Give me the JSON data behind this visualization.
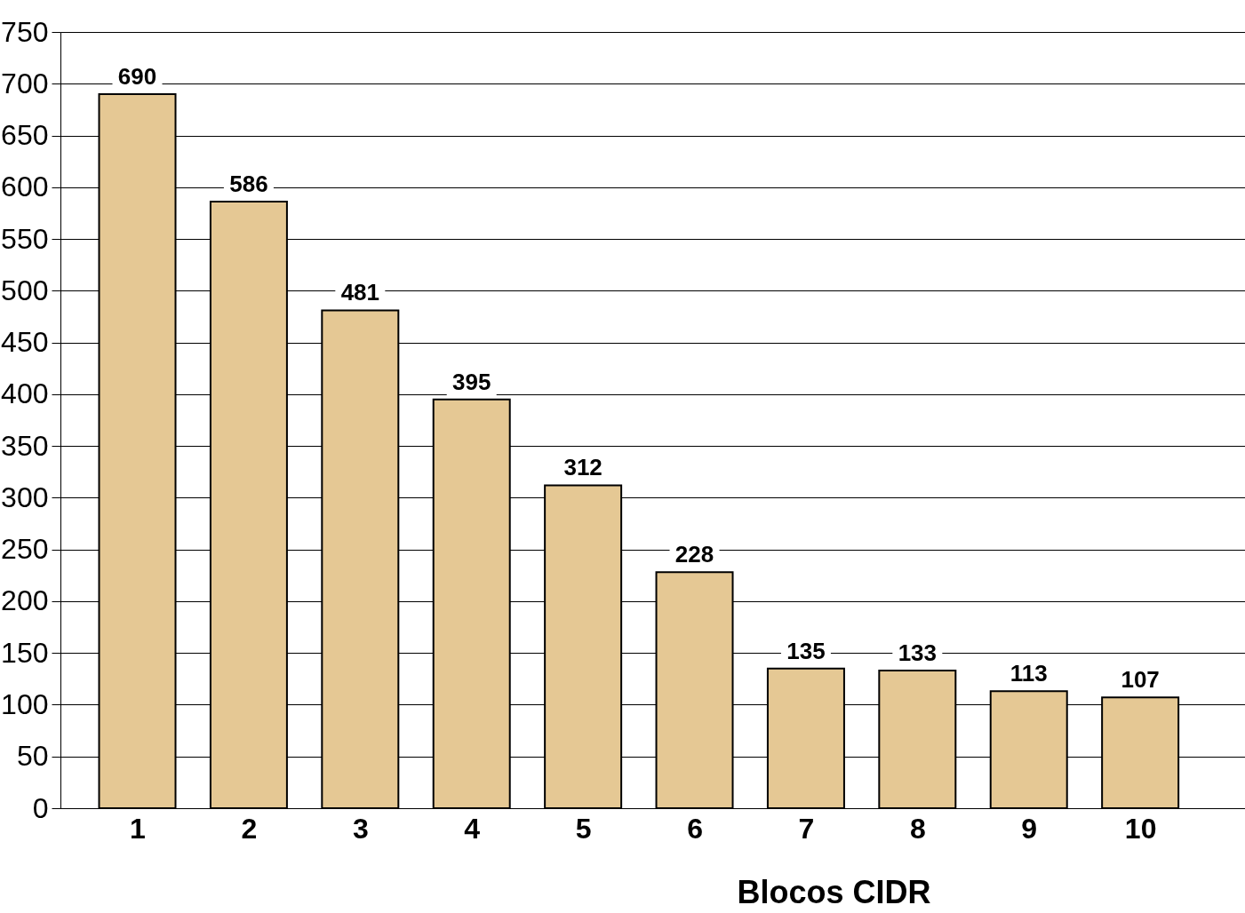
{
  "chart_data": {
    "type": "bar",
    "xlabel": "Blocos CIDR",
    "categories": [
      "1",
      "2",
      "3",
      "4",
      "5",
      "6",
      "7",
      "8",
      "9",
      "10"
    ],
    "values": [
      690,
      586,
      481,
      395,
      312,
      228,
      135,
      133,
      113,
      107
    ],
    "color": "#e5c894",
    "ylim": [
      0,
      750
    ],
    "yticks": [
      0,
      50,
      100,
      150,
      200,
      250,
      300,
      350,
      400,
      450,
      500,
      550,
      600,
      650,
      700,
      750
    ],
    "grid": "y",
    "data_labels": true
  }
}
